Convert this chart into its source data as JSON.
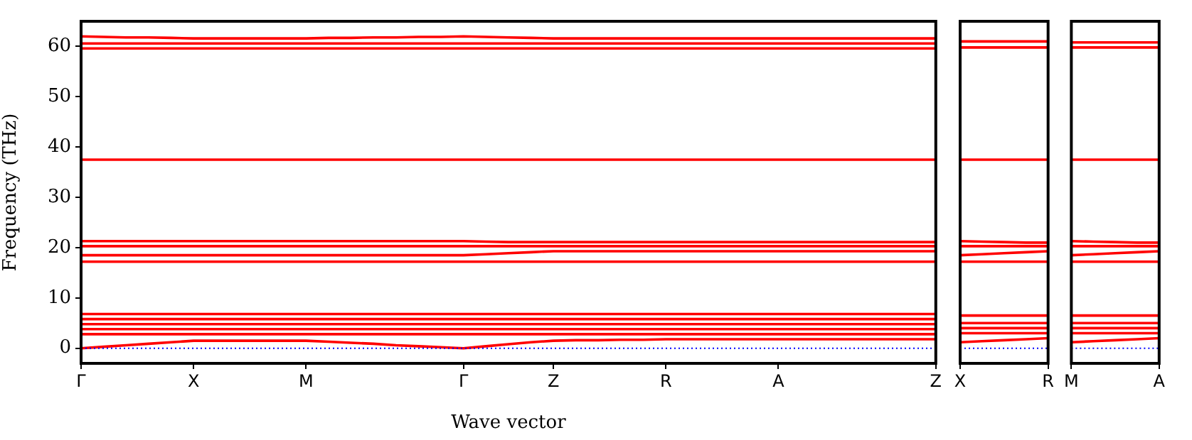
{
  "chart_data": [
    {
      "type": "line",
      "xlabel": "Wave vector",
      "ylabel": "Frequency (THz)",
      "categories": [
        "Γ",
        null,
        null,
        null,
        null,
        "X",
        null,
        null,
        null,
        null,
        "M",
        null,
        null,
        null,
        null,
        null,
        null,
        "Γ",
        null,
        null,
        null,
        "Z",
        null,
        null,
        null,
        null,
        "R",
        null,
        null,
        null,
        null,
        "A",
        null,
        null,
        null,
        null,
        null,
        null,
        "Z"
      ],
      "ylim": [
        -3,
        65
      ],
      "yticks": [
        0,
        10,
        20,
        30,
        40,
        50,
        60
      ],
      "grid": false,
      "legend": false,
      "ref_lines": [
        {
          "axis": "y",
          "value": 0,
          "color": "#0000ff",
          "line_style": "dotted"
        }
      ],
      "series": [
        {
          "color": "#ff0000",
          "values": [
            0,
            0.3,
            0.6,
            0.9,
            1.2,
            1.5,
            1.5,
            1.5,
            1.5,
            1.5,
            1.5,
            1.3,
            1.1,
            0.9,
            0.6,
            0.4,
            0.2,
            0,
            0.4,
            0.8,
            1.2,
            1.5,
            1.6,
            1.6,
            1.7,
            1.7,
            1.8,
            1.8,
            1.8,
            1.8,
            1.8,
            1.8,
            1.8,
            1.8,
            1.8,
            1.8,
            1.8,
            1.8,
            1.8
          ]
        },
        {
          "color": "#ff0000",
          "values": [
            2.8,
            2.8,
            2.8,
            2.8,
            2.8,
            2.8,
            2.8,
            2.8,
            2.8,
            2.8,
            2.8,
            2.8,
            2.8,
            2.8,
            2.8,
            2.8,
            2.8,
            2.8,
            2.8,
            2.8,
            2.8,
            2.8,
            2.8,
            2.8,
            2.8,
            2.8,
            2.8,
            2.8,
            2.8,
            2.8,
            2.8,
            2.8,
            2.8,
            2.8,
            2.8,
            2.8,
            2.8,
            2.8,
            2.8
          ]
        },
        {
          "color": "#ff0000",
          "values": [
            3.8,
            3.8,
            3.8,
            3.8,
            3.8,
            3.8,
            3.8,
            3.8,
            3.8,
            3.8,
            3.8,
            3.8,
            3.8,
            3.8,
            3.8,
            3.8,
            3.8,
            3.8,
            3.8,
            3.8,
            3.8,
            3.8,
            3.8,
            3.8,
            3.8,
            3.8,
            3.8,
            3.8,
            3.8,
            3.8,
            3.8,
            3.8,
            3.8,
            3.8,
            3.8,
            3.8,
            3.8,
            3.8,
            3.8
          ]
        },
        {
          "color": "#ff0000",
          "values": [
            4.8,
            4.8,
            4.8,
            4.8,
            4.8,
            4.8,
            4.8,
            4.8,
            4.8,
            4.8,
            4.8,
            4.8,
            4.8,
            4.8,
            4.8,
            4.8,
            4.8,
            4.8,
            4.8,
            4.8,
            4.8,
            4.8,
            4.8,
            4.8,
            4.8,
            4.8,
            4.8,
            4.8,
            4.8,
            4.8,
            4.8,
            4.8,
            4.8,
            4.8,
            4.8,
            4.8,
            4.8,
            4.8,
            4.8
          ]
        },
        {
          "color": "#ff0000",
          "values": [
            5.8,
            5.8,
            5.8,
            5.8,
            5.8,
            5.8,
            5.8,
            5.8,
            5.8,
            5.8,
            5.8,
            5.8,
            5.8,
            5.8,
            5.8,
            5.8,
            5.8,
            5.8,
            5.8,
            5.8,
            5.8,
            5.8,
            5.8,
            5.8,
            5.8,
            5.8,
            5.8,
            5.8,
            5.8,
            5.8,
            5.8,
            5.8,
            5.8,
            5.8,
            5.8,
            5.8,
            5.8,
            5.8,
            5.8
          ]
        },
        {
          "color": "#ff0000",
          "values": [
            6.8,
            6.8,
            6.8,
            6.8,
            6.8,
            6.8,
            6.8,
            6.8,
            6.8,
            6.8,
            6.8,
            6.8,
            6.8,
            6.8,
            6.8,
            6.8,
            6.8,
            6.8,
            6.8,
            6.8,
            6.8,
            6.8,
            6.8,
            6.8,
            6.8,
            6.8,
            6.8,
            6.8,
            6.8,
            6.8,
            6.8,
            6.8,
            6.8,
            6.8,
            6.8,
            6.8,
            6.8,
            6.8,
            6.8
          ]
        },
        {
          "color": "#ff0000",
          "values": [
            17.2,
            17.2,
            17.2,
            17.2,
            17.2,
            17.2,
            17.2,
            17.2,
            17.2,
            17.2,
            17.2,
            17.2,
            17.2,
            17.2,
            17.2,
            17.2,
            17.2,
            17.2,
            17.2,
            17.2,
            17.2,
            17.2,
            17.2,
            17.2,
            17.2,
            17.2,
            17.2,
            17.2,
            17.2,
            17.2,
            17.2,
            17.2,
            17.2,
            17.2,
            17.2,
            17.2,
            17.2,
            17.2,
            17.2
          ]
        },
        {
          "color": "#ff0000",
          "values": [
            18.5,
            18.5,
            18.5,
            18.5,
            18.5,
            18.5,
            18.5,
            18.5,
            18.5,
            18.5,
            18.5,
            18.5,
            18.5,
            18.5,
            18.5,
            18.5,
            18.5,
            18.5,
            18.7,
            18.9,
            19.1,
            19.3,
            19.3,
            19.3,
            19.3,
            19.3,
            19.3,
            19.3,
            19.3,
            19.3,
            19.3,
            19.3,
            19.3,
            19.3,
            19.3,
            19.3,
            19.3,
            19.3,
            19.3
          ]
        },
        {
          "color": "#ff0000",
          "values": [
            20.3,
            20.3,
            20.3,
            20.3,
            20.3,
            20.3,
            20.3,
            20.3,
            20.3,
            20.3,
            20.3,
            20.3,
            20.3,
            20.3,
            20.3,
            20.3,
            20.3,
            20.3,
            20.3,
            20.3,
            20.3,
            20.3,
            20.3,
            20.3,
            20.3,
            20.3,
            20.3,
            20.3,
            20.3,
            20.3,
            20.3,
            20.3,
            20.3,
            20.3,
            20.3,
            20.3,
            20.3,
            20.3,
            20.3
          ]
        },
        {
          "color": "#ff0000",
          "values": [
            21.3,
            21.3,
            21.3,
            21.3,
            21.3,
            21.3,
            21.3,
            21.3,
            21.3,
            21.3,
            21.3,
            21.3,
            21.3,
            21.3,
            21.3,
            21.3,
            21.3,
            21.3,
            21.2,
            21.1,
            21.1,
            21.1,
            21.1,
            21.1,
            21.1,
            21.1,
            21.1,
            21.1,
            21.1,
            21.1,
            21.1,
            21.1,
            21.1,
            21.1,
            21.1,
            21.1,
            21.1,
            21.1,
            21.1
          ]
        },
        {
          "color": "#ff0000",
          "values": [
            37.5,
            37.5,
            37.5,
            37.5,
            37.5,
            37.5,
            37.5,
            37.5,
            37.5,
            37.5,
            37.5,
            37.5,
            37.5,
            37.5,
            37.5,
            37.5,
            37.5,
            37.5,
            37.5,
            37.5,
            37.5,
            37.5,
            37.5,
            37.5,
            37.5,
            37.5,
            37.5,
            37.5,
            37.5,
            37.5,
            37.5,
            37.5,
            37.5,
            37.5,
            37.5,
            37.5,
            37.5,
            37.5,
            37.5
          ]
        },
        {
          "color": "#ff0000",
          "values": [
            59.6,
            59.6,
            59.6,
            59.6,
            59.6,
            59.6,
            59.6,
            59.6,
            59.6,
            59.6,
            59.6,
            59.6,
            59.6,
            59.6,
            59.6,
            59.6,
            59.6,
            59.6,
            59.6,
            59.6,
            59.6,
            59.6,
            59.6,
            59.6,
            59.6,
            59.6,
            59.6,
            59.6,
            59.6,
            59.6,
            59.6,
            59.6,
            59.6,
            59.6,
            59.6,
            59.6,
            59.6,
            59.6,
            59.6
          ]
        },
        {
          "color": "#ff0000",
          "values": [
            60.6,
            60.6,
            60.6,
            60.6,
            60.6,
            60.6,
            60.6,
            60.6,
            60.6,
            60.6,
            60.6,
            60.6,
            60.6,
            60.6,
            60.6,
            60.6,
            60.6,
            60.6,
            60.6,
            60.6,
            60.6,
            60.6,
            60.6,
            60.6,
            60.6,
            60.6,
            60.6,
            60.6,
            60.6,
            60.6,
            60.6,
            60.6,
            60.6,
            60.6,
            60.6,
            60.6,
            60.6,
            60.6,
            60.6
          ]
        },
        {
          "color": "#ff0000",
          "values": [
            62,
            61.9,
            61.8,
            61.8,
            61.7,
            61.6,
            61.6,
            61.6,
            61.6,
            61.6,
            61.6,
            61.7,
            61.7,
            61.8,
            61.8,
            61.9,
            61.9,
            62,
            61.9,
            61.8,
            61.7,
            61.6,
            61.6,
            61.6,
            61.6,
            61.6,
            61.6,
            61.6,
            61.6,
            61.6,
            61.6,
            61.6,
            61.6,
            61.6,
            61.6,
            61.6,
            61.6,
            61.6,
            61.6
          ]
        }
      ]
    },
    {
      "type": "line",
      "categories": [
        "X",
        null,
        null,
        null,
        "R"
      ],
      "ylim": [
        -3,
        65
      ],
      "yticks": [
        0,
        10,
        20,
        30,
        40,
        50,
        60
      ],
      "tick_labels": "x",
      "grid": false,
      "legend": false,
      "ref_lines": [
        {
          "axis": "y",
          "value": 0,
          "color": "#0000ff",
          "line_style": "dotted"
        }
      ],
      "series": [
        {
          "color": "#ff0000",
          "values": [
            1.2,
            1.4,
            1.6,
            1.8,
            2
          ]
        },
        {
          "color": "#ff0000",
          "values": [
            3,
            3,
            3,
            3,
            3
          ]
        },
        {
          "color": "#ff0000",
          "values": [
            4,
            4,
            4,
            4,
            4
          ]
        },
        {
          "color": "#ff0000",
          "values": [
            5,
            5,
            5,
            5,
            5
          ]
        },
        {
          "color": "#ff0000",
          "values": [
            6.5,
            6.5,
            6.5,
            6.5,
            6.5
          ]
        },
        {
          "color": "#ff0000",
          "values": [
            17.2,
            17.2,
            17.2,
            17.2,
            17.2
          ]
        },
        {
          "color": "#ff0000",
          "values": [
            18.5,
            18.7,
            18.9,
            19.1,
            19.3
          ]
        },
        {
          "color": "#ff0000",
          "values": [
            20.3,
            20.3,
            20.3,
            20.3,
            20.3
          ]
        },
        {
          "color": "#ff0000",
          "values": [
            21.3,
            21.2,
            21.1,
            21,
            21
          ]
        },
        {
          "color": "#ff0000",
          "values": [
            37.5,
            37.5,
            37.5,
            37.5,
            37.5
          ]
        },
        {
          "color": "#ff0000",
          "values": [
            59.8,
            59.8,
            59.8,
            59.8,
            59.8
          ]
        },
        {
          "color": "#ff0000",
          "values": [
            61,
            61,
            61,
            61,
            61
          ]
        }
      ]
    },
    {
      "type": "line",
      "categories": [
        "M",
        null,
        null,
        null,
        "A"
      ],
      "ylim": [
        -3,
        65
      ],
      "yticks": [
        0,
        10,
        20,
        30,
        40,
        50,
        60
      ],
      "tick_labels": "x",
      "grid": false,
      "legend": false,
      "ref_lines": [
        {
          "axis": "y",
          "value": 0,
          "color": "#0000ff",
          "line_style": "dotted"
        }
      ],
      "series": [
        {
          "color": "#ff0000",
          "values": [
            1.2,
            1.4,
            1.6,
            1.8,
            2
          ]
        },
        {
          "color": "#ff0000",
          "values": [
            3,
            3,
            3,
            3,
            3
          ]
        },
        {
          "color": "#ff0000",
          "values": [
            4,
            4,
            4,
            4,
            4
          ]
        },
        {
          "color": "#ff0000",
          "values": [
            5,
            5,
            5,
            5,
            5
          ]
        },
        {
          "color": "#ff0000",
          "values": [
            6.5,
            6.5,
            6.5,
            6.5,
            6.5
          ]
        },
        {
          "color": "#ff0000",
          "values": [
            17.2,
            17.2,
            17.2,
            17.2,
            17.2
          ]
        },
        {
          "color": "#ff0000",
          "values": [
            18.5,
            18.7,
            18.9,
            19.1,
            19.3
          ]
        },
        {
          "color": "#ff0000",
          "values": [
            20.3,
            20.3,
            20.3,
            20.3,
            20.3
          ]
        },
        {
          "color": "#ff0000",
          "values": [
            21.3,
            21.2,
            21.1,
            21,
            21
          ]
        },
        {
          "color": "#ff0000",
          "values": [
            37.5,
            37.5,
            37.5,
            37.5,
            37.5
          ]
        },
        {
          "color": "#ff0000",
          "values": [
            59.8,
            59.8,
            59.8,
            59.8,
            59.8
          ]
        },
        {
          "color": "#ff0000",
          "values": [
            60.8,
            60.8,
            60.8,
            60.8,
            60.8
          ]
        }
      ]
    }
  ]
}
